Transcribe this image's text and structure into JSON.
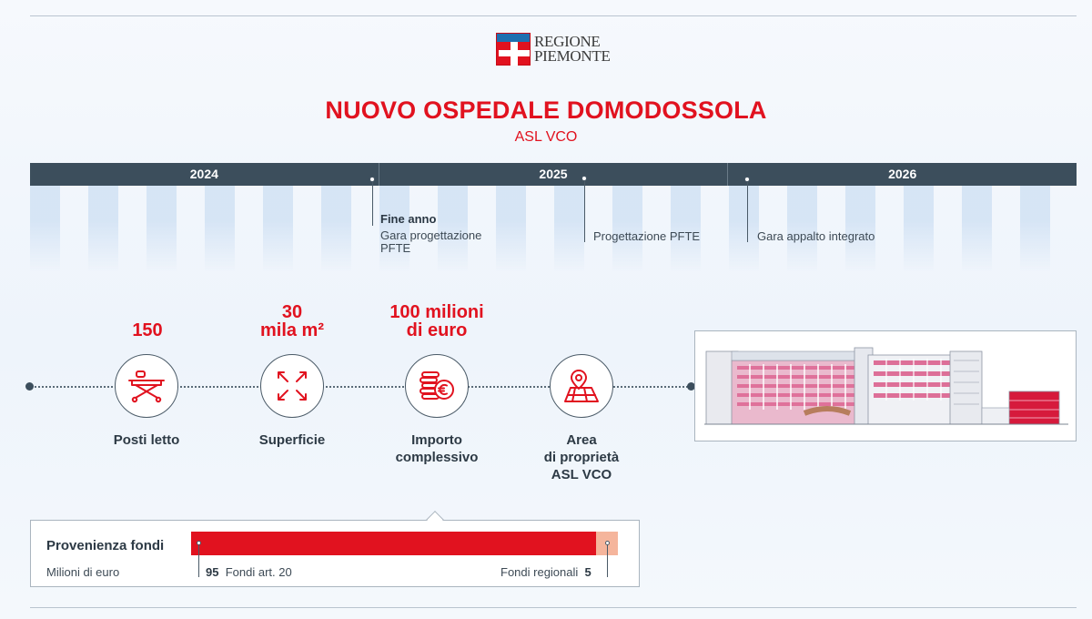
{
  "logo": {
    "line1": "REGIONE",
    "line2": "PIEMONTE"
  },
  "header": {
    "title": "NUOVO OSPEDALE DOMODOSSOLA",
    "subtitle": "ASL VCO"
  },
  "timeline": {
    "years": [
      "2024",
      "2025",
      "2026"
    ],
    "milestones": [
      {
        "heading": "Fine anno",
        "text": "Gara progettazione\nPFTE"
      },
      {
        "heading": "",
        "text": "Progettazione PFTE"
      },
      {
        "heading": "",
        "text": "Gara appalto integrato"
      }
    ]
  },
  "stats": [
    {
      "value": "150",
      "label": "Posti letto",
      "icon": "hospital-bed-icon"
    },
    {
      "value": "30\nmila m²",
      "label": "Superficie",
      "icon": "expand-arrows-icon"
    },
    {
      "value": "100 milioni\ndi euro",
      "label": "Importo\ncomplessivo",
      "icon": "coins-euro-icon"
    },
    {
      "value": "",
      "label": "Area\ndi proprietà\nASL VCO",
      "icon": "map-area-icon"
    }
  ],
  "funding": {
    "title": "Provenienza fondi",
    "unit": "Milioni di euro",
    "segments": [
      {
        "name": "Fondi art. 20",
        "value": 95,
        "color": "#e1121f"
      },
      {
        "name": "Fondi regionali",
        "value": 5,
        "color": "#f5b59c"
      }
    ]
  },
  "colors": {
    "accent": "#e1121f",
    "dark": "#3c4e5c"
  }
}
